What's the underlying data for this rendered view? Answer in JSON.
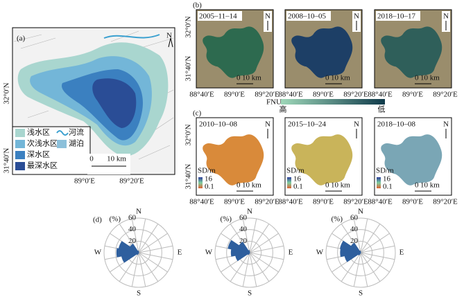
{
  "panel_a": {
    "label": "(a)",
    "north": "N",
    "legend": [
      {
        "label": "浅水区",
        "color": "#a9d6cf"
      },
      {
        "label": "次浅水区",
        "color": "#73b6d8"
      },
      {
        "label": "深水区",
        "color": "#3b80c0"
      },
      {
        "label": "最深水区",
        "color": "#2a4d96"
      },
      {
        "label": "河流",
        "color": "#3aa0d0"
      },
      {
        "label": "湖泊",
        "color": "#8cc0da"
      }
    ],
    "yticks": [
      "32°0′N",
      "31°40′N"
    ],
    "xticks": [
      "89°0′E",
      "89°20′E"
    ],
    "scale": [
      "0",
      "10 km"
    ]
  },
  "panel_b": {
    "label": "(b)",
    "dates": [
      "2005–11–14",
      "2008–10–05",
      "2018–10–17"
    ],
    "north": "N",
    "yticks": [
      "32°0′N",
      "31°40′N"
    ],
    "xticks": [
      "88°40′E",
      "89°0′E",
      "89°20′E"
    ],
    "scale": [
      "0",
      "10 km"
    ],
    "colorbar": {
      "title": "FNU",
      "high": "高",
      "low": "低"
    }
  },
  "panel_c": {
    "label": "(c)",
    "dates": [
      "2010–10–08",
      "2015–10–24",
      "2018–10–08"
    ],
    "north": "N",
    "yticks": [
      "32°0′N",
      "31°40′N"
    ],
    "xticks": [
      "88°40′E",
      "89°0′E",
      "89°20′E"
    ],
    "scale": [
      "0",
      "10 km"
    ],
    "legend_title": "SD/m",
    "legend_max": "16",
    "legend_min": "0.1"
  },
  "panel_d_label": "(d)",
  "chart_data": [
    {
      "type": "rose",
      "unit": "(%)",
      "color": "#2e5f9e",
      "categories": [
        "N",
        null,
        null,
        null,
        "E",
        null,
        null,
        null,
        "S",
        null,
        null,
        null,
        "W",
        null,
        null,
        null
      ],
      "values": [
        0,
        0,
        0,
        0,
        0,
        0,
        0,
        0,
        0,
        1,
        4,
        30,
        38,
        35,
        18,
        3
      ],
      "rlim": [
        0,
        60
      ],
      "rticks": [
        0,
        20,
        40,
        60
      ]
    },
    {
      "type": "rose",
      "unit": "(%)",
      "color": "#2e5f9e",
      "categories": [
        "N",
        null,
        null,
        null,
        "E",
        null,
        null,
        null,
        "S",
        null,
        null,
        null,
        "W",
        null,
        null,
        null
      ],
      "values": [
        0,
        0,
        0,
        0,
        0,
        0,
        0,
        0,
        0,
        1,
        4,
        25,
        32,
        38,
        22,
        4
      ],
      "rlim": [
        0,
        60
      ],
      "rticks": [
        0,
        20,
        40,
        60
      ]
    },
    {
      "type": "rose",
      "unit": "(%)",
      "color": "#2e5f9e",
      "categories": [
        "N",
        null,
        null,
        null,
        "E",
        null,
        null,
        null,
        "S",
        null,
        null,
        null,
        "W",
        null,
        null,
        null
      ],
      "values": [
        0,
        0,
        0,
        0,
        0,
        0,
        0,
        0,
        0,
        1,
        5,
        28,
        35,
        36,
        20,
        3
      ],
      "rlim": [
        0,
        60
      ],
      "rticks": [
        0,
        20,
        40,
        60
      ]
    }
  ]
}
